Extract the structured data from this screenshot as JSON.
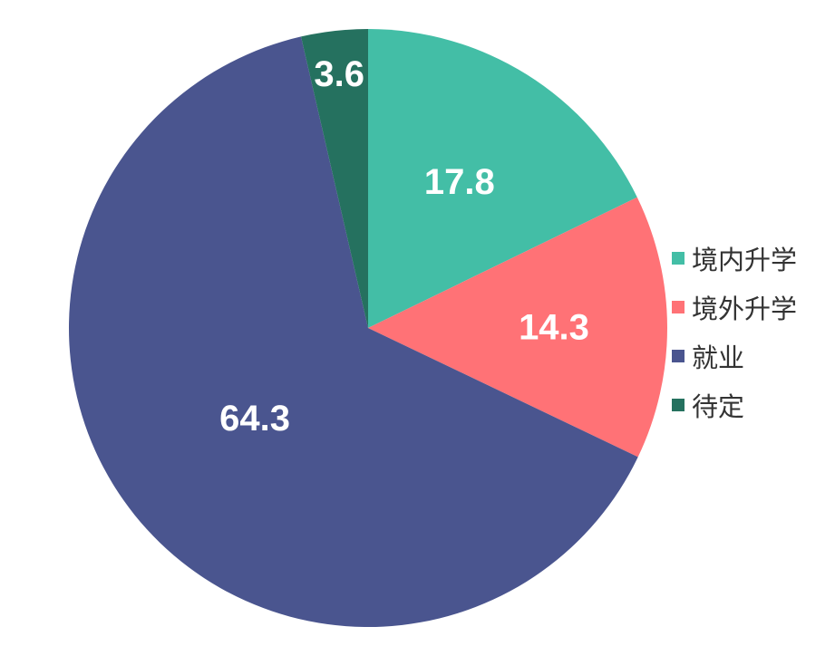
{
  "chart_data": {
    "type": "pie",
    "categories": [
      "境内升学",
      "境外升学",
      "就业",
      "待定"
    ],
    "values": [
      17.8,
      14.3,
      64.3,
      3.6
    ],
    "data_labels": [
      "17.8",
      "14.3",
      "64.3",
      "3.6"
    ],
    "colors": [
      "#43BEA6",
      "#FF7276",
      "#4A558F",
      "#25715F"
    ],
    "start_angle_deg": 0,
    "direction": "clockwise",
    "legend_position": "right"
  }
}
